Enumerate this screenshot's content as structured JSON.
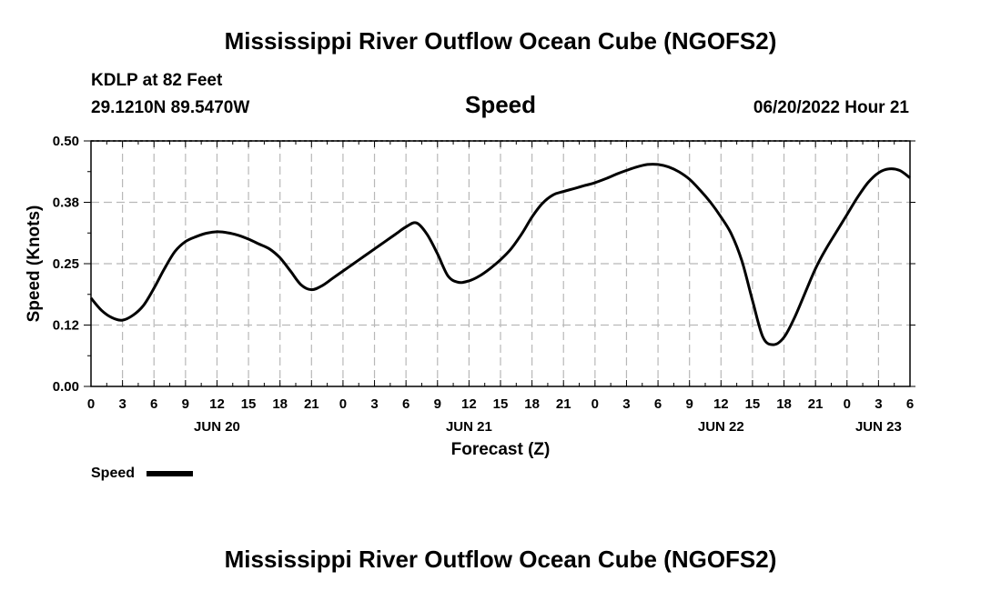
{
  "page": {
    "title": "Mississippi River Outflow Ocean Cube (NGOFS2)",
    "station": "KDLP at 82 Feet",
    "coords": "29.1210N  89.5470W",
    "variable": "Speed",
    "datetime": "06/20/2022 Hour 21",
    "footer_title": "Mississippi River Outflow Ocean Cube (NGOFS2)",
    "legend_label": "Speed"
  },
  "chart_data": {
    "type": "line",
    "title": "Speed",
    "xlabel": "Forecast (Z)",
    "ylabel": "Speed (Knots)",
    "xlim": [
      0,
      78
    ],
    "ylim": [
      0,
      0.5
    ],
    "yticks": [
      0.0,
      0.125,
      0.25,
      0.375,
      0.5
    ],
    "ytick_labels": [
      "0.00",
      "0.12",
      "0.25",
      "0.38",
      "0.50"
    ],
    "xticks": [
      0,
      3,
      6,
      9,
      12,
      15,
      18,
      21,
      24,
      27,
      30,
      33,
      36,
      39,
      42,
      45,
      48,
      51,
      54,
      57,
      60,
      63,
      66,
      69,
      72,
      75,
      78
    ],
    "xtick_labels": [
      "0",
      "3",
      "6",
      "9",
      "12",
      "15",
      "18",
      "21",
      "0",
      "3",
      "6",
      "9",
      "12",
      "15",
      "18",
      "21",
      "0",
      "3",
      "6",
      "9",
      "12",
      "15",
      "18",
      "21",
      "0",
      "3",
      "6"
    ],
    "date_labels": [
      {
        "x": 12,
        "label": "JUN 20"
      },
      {
        "x": 36,
        "label": "JUN 21"
      },
      {
        "x": 60,
        "label": "JUN 22"
      },
      {
        "x": 75,
        "label": "JUN 23"
      }
    ],
    "grid": true,
    "legend": "bottom-left",
    "series": [
      {
        "name": "Speed",
        "color": "#000000",
        "x": [
          0,
          1,
          2,
          3,
          4,
          5,
          6,
          7,
          8,
          9,
          10,
          11,
          12,
          13,
          14,
          15,
          16,
          17,
          18,
          19,
          20,
          21,
          22,
          23,
          24,
          25,
          26,
          27,
          28,
          29,
          30,
          31,
          32,
          33,
          34,
          35,
          36,
          37,
          38,
          39,
          40,
          41,
          42,
          43,
          44,
          45,
          46,
          47,
          48,
          49,
          50,
          51,
          52,
          53,
          54,
          55,
          56,
          57,
          58,
          59,
          60,
          61,
          62,
          63,
          64,
          65,
          66,
          67,
          68,
          69,
          70,
          71,
          72,
          73,
          74,
          75,
          76,
          77,
          78
        ],
        "y": [
          0.18,
          0.155,
          0.14,
          0.135,
          0.145,
          0.165,
          0.2,
          0.24,
          0.275,
          0.295,
          0.305,
          0.312,
          0.315,
          0.313,
          0.308,
          0.3,
          0.29,
          0.28,
          0.262,
          0.235,
          0.207,
          0.197,
          0.205,
          0.22,
          0.235,
          0.25,
          0.265,
          0.28,
          0.295,
          0.31,
          0.325,
          0.333,
          0.31,
          0.27,
          0.225,
          0.212,
          0.215,
          0.225,
          0.24,
          0.258,
          0.28,
          0.31,
          0.345,
          0.373,
          0.39,
          0.397,
          0.403,
          0.409,
          0.415,
          0.423,
          0.432,
          0.44,
          0.447,
          0.452,
          0.452,
          0.447,
          0.437,
          0.422,
          0.4,
          0.375,
          0.345,
          0.31,
          0.255,
          0.175,
          0.1,
          0.085,
          0.1,
          0.14,
          0.19,
          0.24,
          0.28,
          0.315,
          0.35,
          0.385,
          0.415,
          0.435,
          0.443,
          0.44,
          0.425
        ]
      }
    ]
  }
}
